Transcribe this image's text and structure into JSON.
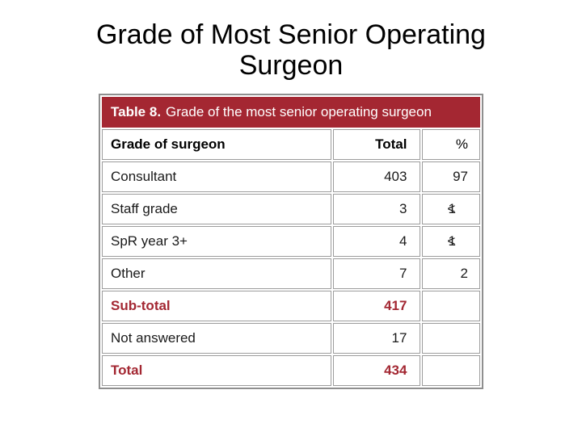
{
  "slide": {
    "title": "Grade of Most Senior Operating Surgeon"
  },
  "table": {
    "caption_prefix": "Table 8.",
    "caption_text": "Grade of the most senior operating surgeon",
    "columns": [
      "Grade of surgeon",
      "Total",
      "%"
    ],
    "rows": [
      {
        "label": "Consultant",
        "total": "403",
        "pct": "97"
      },
      {
        "label": "Staff grade",
        "total": "3",
        "pct": "<1"
      },
      {
        "label": "SpR year 3+",
        "total": "4",
        "pct": "<1"
      },
      {
        "label": "Other",
        "total": "7",
        "pct": "2"
      },
      {
        "label": "Sub-total",
        "total": "417",
        "pct": ""
      },
      {
        "label": "Not answered",
        "total": "17",
        "pct": ""
      },
      {
        "label": "Total",
        "total": "434",
        "pct": ""
      }
    ],
    "colors": {
      "banner_red": "#a42732",
      "emphasis_red": "#a32732",
      "border_gray": "#8f8f8f"
    }
  }
}
